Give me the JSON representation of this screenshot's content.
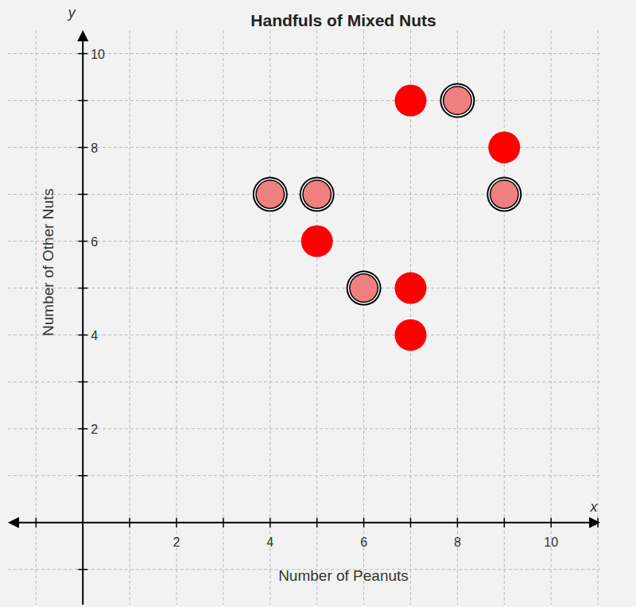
{
  "chart_data": {
    "type": "scatter",
    "title": "Handfuls of Mixed Nuts",
    "x_label": "Number of Peanuts",
    "y_label": "Number of Other Nuts",
    "x_name": "x",
    "y_name": "y",
    "xlim": [
      -1.6,
      11.05
    ],
    "ylim": [
      -1.75,
      10.5
    ],
    "xticks": [
      2,
      4,
      6,
      8,
      10
    ],
    "yticks": [
      2,
      4,
      6,
      8,
      10
    ],
    "grid": true,
    "series": [
      {
        "color": "#ff0000",
        "marker": "circle",
        "x": [
          7,
          9,
          5,
          7,
          7
        ],
        "values": [
          9,
          8,
          6,
          5,
          4
        ]
      },
      {
        "color": "#f08080",
        "marker": "ringed-circle",
        "x": [
          8,
          9,
          4,
          5,
          6
        ],
        "values": [
          9,
          7,
          7,
          7,
          5
        ]
      }
    ]
  }
}
